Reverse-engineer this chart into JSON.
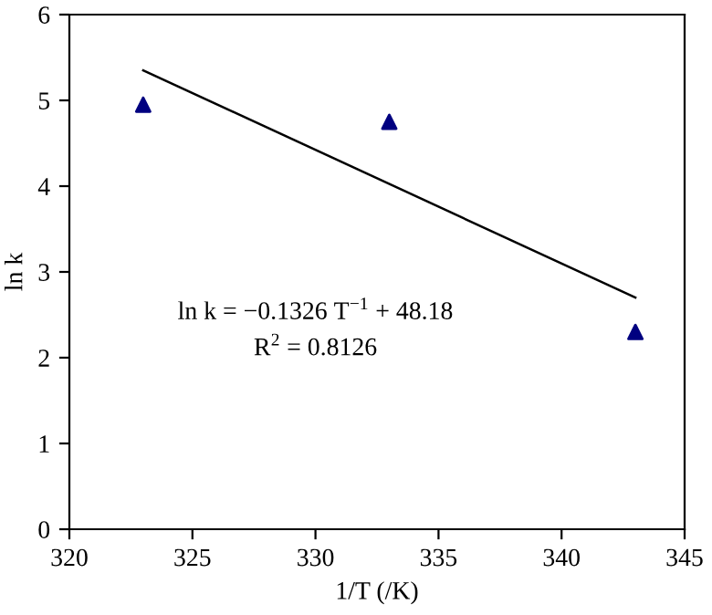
{
  "chart_data": {
    "type": "scatter",
    "xlabel": "1/T (/K)",
    "ylabel": "ln k",
    "series": [
      {
        "color": "#000080",
        "marker": "triangle",
        "x": [
          323,
          333,
          343
        ],
        "values": [
          4.95,
          4.75,
          2.3
        ]
      },
      {
        "type": "line",
        "color": "#000000",
        "marker": "none",
        "line_style": "solid",
        "x": [
          323,
          343
        ],
        "values": [
          5.35,
          2.7
        ]
      }
    ],
    "xlim": [
      320,
      345
    ],
    "xticks": [
      320,
      325,
      330,
      335,
      340,
      345
    ],
    "ylim": [
      0,
      6
    ],
    "yticks": [
      0,
      1,
      2,
      3,
      4,
      5,
      6
    ],
    "annotations": [
      "ln k = −0.1326 T$^{−1}$ + 48.18",
      "R$^{2}$ = 0.8126"
    ],
    "grid": false,
    "legend": false
  }
}
